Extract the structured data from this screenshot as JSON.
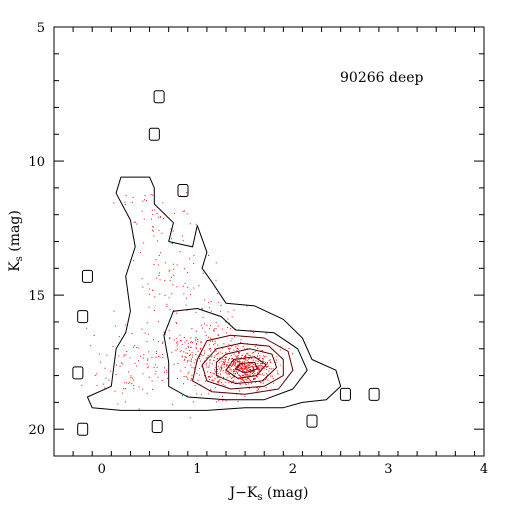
{
  "chart_data": {
    "type": "scatter",
    "annotation": "90266 deep",
    "xlabel": "J−K",
    "xlabel_sub": "s",
    "xlabel_unit": " (mag)",
    "ylabel": "K",
    "ylabel_sub": "s",
    "ylabel_unit": " (mag)",
    "xlim": [
      -0.5,
      4
    ],
    "ylim": [
      21,
      5
    ],
    "y_inverted": true,
    "x_ticks": [
      0,
      1,
      2,
      3,
      4
    ],
    "x_tick_labels": [
      "0",
      "1",
      "2",
      "3",
      "4"
    ],
    "y_ticks": [
      5,
      10,
      15,
      20
    ],
    "y_tick_labels": [
      "5",
      "10",
      "15",
      "20"
    ],
    "x_minor_step": 0.2,
    "y_minor_step": 1,
    "colors": {
      "points": "#ff0000",
      "contours": "#000000",
      "inner_contours": "#5a0000"
    },
    "isolated_boxes": [
      {
        "x": 0.6,
        "y": 7.6
      },
      {
        "x": 0.55,
        "y": 9.0
      },
      {
        "x": 0.85,
        "y": 11.1
      },
      {
        "x": -0.15,
        "y": 14.3
      },
      {
        "x": -0.2,
        "y": 15.8
      },
      {
        "x": -0.25,
        "y": 17.9
      },
      {
        "x": -0.2,
        "y": 20.0
      },
      {
        "x": 0.58,
        "y": 19.9
      },
      {
        "x": 2.2,
        "y": 19.7
      },
      {
        "x": 2.55,
        "y": 18.7
      },
      {
        "x": 2.85,
        "y": 18.7
      }
    ],
    "contours": [
      {
        "level": 1,
        "points": [
          [
            0.2,
            10.6
          ],
          [
            0.5,
            10.6
          ],
          [
            0.55,
            11.0
          ],
          [
            0.55,
            11.6
          ],
          [
            0.75,
            12.3
          ],
          [
            0.7,
            13.0
          ],
          [
            0.95,
            13.2
          ],
          [
            1.0,
            12.4
          ],
          [
            1.1,
            13.4
          ],
          [
            1.05,
            14.0
          ],
          [
            1.15,
            14.5
          ],
          [
            1.3,
            15.3
          ],
          [
            1.6,
            15.4
          ],
          [
            1.9,
            15.9
          ],
          [
            2.1,
            16.6
          ],
          [
            2.2,
            17.4
          ],
          [
            2.45,
            17.8
          ],
          [
            2.5,
            18.4
          ],
          [
            2.35,
            18.9
          ],
          [
            2.1,
            19.0
          ],
          [
            1.9,
            19.2
          ],
          [
            1.5,
            19.2
          ],
          [
            1.1,
            19.3
          ],
          [
            0.6,
            19.3
          ],
          [
            0.2,
            19.3
          ],
          [
            -0.1,
            19.2
          ],
          [
            -0.15,
            18.8
          ],
          [
            0.1,
            18.4
          ],
          [
            0.15,
            17.0
          ],
          [
            0.25,
            16.4
          ],
          [
            0.3,
            15.6
          ],
          [
            0.25,
            14.3
          ],
          [
            0.35,
            13.2
          ],
          [
            0.3,
            12.2
          ],
          [
            0.15,
            11.2
          ]
        ]
      },
      {
        "level": 2,
        "points": [
          [
            0.75,
            15.6
          ],
          [
            1.0,
            15.5
          ],
          [
            1.25,
            15.8
          ],
          [
            1.4,
            16.3
          ],
          [
            1.8,
            16.4
          ],
          [
            2.05,
            17.0
          ],
          [
            2.15,
            17.8
          ],
          [
            2.0,
            18.5
          ],
          [
            1.7,
            18.9
          ],
          [
            1.3,
            18.9
          ],
          [
            0.9,
            18.8
          ],
          [
            0.7,
            18.4
          ],
          [
            0.7,
            17.5
          ],
          [
            0.65,
            16.5
          ]
        ]
      },
      {
        "level": 3,
        "points": [
          [
            1.1,
            16.7
          ],
          [
            1.35,
            16.5
          ],
          [
            1.7,
            16.6
          ],
          [
            1.95,
            17.1
          ],
          [
            2.0,
            17.8
          ],
          [
            1.85,
            18.5
          ],
          [
            1.5,
            18.7
          ],
          [
            1.15,
            18.6
          ],
          [
            0.95,
            18.2
          ],
          [
            1.0,
            17.4
          ]
        ]
      },
      {
        "level": 4,
        "points": [
          [
            1.2,
            17.0
          ],
          [
            1.45,
            16.8
          ],
          [
            1.75,
            16.9
          ],
          [
            1.9,
            17.4
          ],
          [
            1.9,
            18.0
          ],
          [
            1.7,
            18.4
          ],
          [
            1.35,
            18.5
          ],
          [
            1.1,
            18.2
          ],
          [
            1.05,
            17.6
          ]
        ]
      },
      {
        "level": 5,
        "points": [
          [
            1.3,
            17.2
          ],
          [
            1.55,
            17.0
          ],
          [
            1.78,
            17.2
          ],
          [
            1.83,
            17.7
          ],
          [
            1.68,
            18.2
          ],
          [
            1.4,
            18.3
          ],
          [
            1.2,
            18.0
          ],
          [
            1.2,
            17.5
          ]
        ]
      },
      {
        "level": 6,
        "points": [
          [
            1.38,
            17.4
          ],
          [
            1.6,
            17.3
          ],
          [
            1.72,
            17.6
          ],
          [
            1.62,
            18.0
          ],
          [
            1.42,
            18.1
          ],
          [
            1.3,
            17.8
          ]
        ]
      },
      {
        "level": 7,
        "points": [
          [
            1.45,
            17.55
          ],
          [
            1.6,
            17.5
          ],
          [
            1.63,
            17.75
          ],
          [
            1.5,
            17.9
          ],
          [
            1.4,
            17.75
          ]
        ]
      }
    ]
  }
}
